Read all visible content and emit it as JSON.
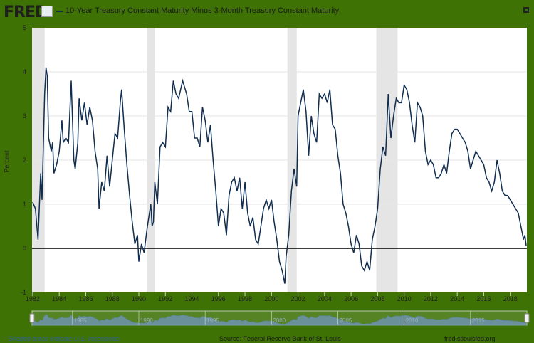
{
  "header": {
    "logo": "FRED",
    "title": "10-Year Treasury Constant Maturity Minus 3-Month Treasury Constant Maturity"
  },
  "footer": {
    "recession_note": "Shaded areas indicate U.S. recessions",
    "source": "Source: Federal Reserve Bank of St. Louis",
    "url": "fred.stlouisfed.org"
  },
  "colors": {
    "background": "#3f7205",
    "series": "#112e51",
    "recession": "#e5e5e5",
    "navigator": "#6f95b8"
  },
  "chart_data": {
    "type": "line",
    "ylabel": "Percent",
    "ylim": [
      -1,
      5
    ],
    "xlim": [
      1981.95,
      2019.25
    ],
    "yticks": [
      "5",
      "4",
      "3",
      "2",
      "1",
      "0",
      "-1"
    ],
    "xticks": [
      "1982",
      "1984",
      "1986",
      "1988",
      "1990",
      "1992",
      "1994",
      "1996",
      "1998",
      "2000",
      "2002",
      "2004",
      "2006",
      "2008",
      "2010",
      "2012",
      "2014",
      "2016",
      "2018"
    ],
    "navigator_ticks": [
      "1985",
      "1990",
      "1995",
      "2000",
      "2005",
      "2010",
      "2015"
    ],
    "grid": true,
    "recessions": [
      [
        1981.5,
        1982.9
      ],
      [
        1990.6,
        1991.2
      ],
      [
        2001.2,
        2001.9
      ],
      [
        2007.9,
        2009.5
      ]
    ],
    "series": [
      {
        "points": [
          [
            1982.0,
            1.05
          ],
          [
            1982.2,
            0.9
          ],
          [
            1982.4,
            0.2
          ],
          [
            1982.6,
            1.7
          ],
          [
            1982.7,
            1.1
          ],
          [
            1982.9,
            3.5
          ],
          [
            1983.0,
            4.1
          ],
          [
            1983.1,
            3.9
          ],
          [
            1983.2,
            2.5
          ],
          [
            1983.4,
            2.2
          ],
          [
            1983.5,
            2.4
          ],
          [
            1983.6,
            1.7
          ],
          [
            1983.8,
            1.9
          ],
          [
            1984.0,
            2.2
          ],
          [
            1984.2,
            2.9
          ],
          [
            1984.3,
            2.4
          ],
          [
            1984.5,
            2.5
          ],
          [
            1984.7,
            2.4
          ],
          [
            1984.9,
            3.8
          ],
          [
            1985.1,
            2.0
          ],
          [
            1985.2,
            1.8
          ],
          [
            1985.4,
            2.4
          ],
          [
            1985.5,
            3.4
          ],
          [
            1985.7,
            2.9
          ],
          [
            1985.9,
            3.3
          ],
          [
            1986.1,
            2.8
          ],
          [
            1986.3,
            3.2
          ],
          [
            1986.5,
            2.9
          ],
          [
            1986.7,
            2.2
          ],
          [
            1986.9,
            1.8
          ],
          [
            1987.0,
            0.9
          ],
          [
            1987.2,
            1.5
          ],
          [
            1987.4,
            1.3
          ],
          [
            1987.6,
            2.1
          ],
          [
            1987.8,
            1.4
          ],
          [
            1988.0,
            2.0
          ],
          [
            1988.2,
            2.6
          ],
          [
            1988.4,
            2.5
          ],
          [
            1988.6,
            3.3
          ],
          [
            1988.7,
            3.6
          ],
          [
            1988.9,
            2.7
          ],
          [
            1989.1,
            1.9
          ],
          [
            1989.3,
            1.2
          ],
          [
            1989.5,
            0.6
          ],
          [
            1989.7,
            0.1
          ],
          [
            1989.9,
            0.3
          ],
          [
            1990.0,
            -0.3
          ],
          [
            1990.2,
            0.1
          ],
          [
            1990.4,
            -0.1
          ],
          [
            1990.6,
            0.4
          ],
          [
            1990.7,
            0.6
          ],
          [
            1990.9,
            1.0
          ],
          [
            1991.0,
            0.5
          ],
          [
            1991.1,
            0.6
          ],
          [
            1991.2,
            1.5
          ],
          [
            1991.4,
            1.0
          ],
          [
            1991.6,
            2.3
          ],
          [
            1991.8,
            2.4
          ],
          [
            1992.0,
            2.3
          ],
          [
            1992.2,
            3.2
          ],
          [
            1992.4,
            3.1
          ],
          [
            1992.6,
            3.8
          ],
          [
            1992.8,
            3.5
          ],
          [
            1993.0,
            3.4
          ],
          [
            1993.3,
            3.8
          ],
          [
            1993.6,
            3.5
          ],
          [
            1993.8,
            3.1
          ],
          [
            1994.0,
            3.1
          ],
          [
            1994.2,
            2.5
          ],
          [
            1994.4,
            2.5
          ],
          [
            1994.6,
            2.3
          ],
          [
            1994.8,
            3.2
          ],
          [
            1995.0,
            2.9
          ],
          [
            1995.2,
            2.4
          ],
          [
            1995.4,
            2.8
          ],
          [
            1995.6,
            2.0
          ],
          [
            1995.8,
            1.3
          ],
          [
            1996.0,
            0.5
          ],
          [
            1996.2,
            0.9
          ],
          [
            1996.4,
            0.8
          ],
          [
            1996.6,
            0.3
          ],
          [
            1996.8,
            1.2
          ],
          [
            1997.0,
            1.5
          ],
          [
            1997.2,
            1.6
          ],
          [
            1997.4,
            1.3
          ],
          [
            1997.6,
            1.6
          ],
          [
            1997.8,
            0.9
          ],
          [
            1998.0,
            1.5
          ],
          [
            1998.2,
            0.8
          ],
          [
            1998.4,
            0.5
          ],
          [
            1998.6,
            0.7
          ],
          [
            1998.8,
            0.2
          ],
          [
            1999.0,
            0.1
          ],
          [
            1999.2,
            0.5
          ],
          [
            1999.4,
            0.9
          ],
          [
            1999.6,
            1.1
          ],
          [
            1999.8,
            0.9
          ],
          [
            2000.0,
            1.1
          ],
          [
            2000.2,
            0.6
          ],
          [
            2000.4,
            0.2
          ],
          [
            2000.6,
            -0.3
          ],
          [
            2000.8,
            -0.5
          ],
          [
            2001.0,
            -0.8
          ],
          [
            2001.1,
            -0.2
          ],
          [
            2001.3,
            0.3
          ],
          [
            2001.5,
            1.3
          ],
          [
            2001.7,
            1.8
          ],
          [
            2001.9,
            1.4
          ],
          [
            2002.0,
            3.0
          ],
          [
            2002.2,
            3.3
          ],
          [
            2002.4,
            3.6
          ],
          [
            2002.6,
            3.1
          ],
          [
            2002.8,
            2.1
          ],
          [
            2003.0,
            3.0
          ],
          [
            2003.2,
            2.6
          ],
          [
            2003.4,
            2.4
          ],
          [
            2003.6,
            3.5
          ],
          [
            2003.8,
            3.4
          ],
          [
            2004.0,
            3.5
          ],
          [
            2004.2,
            3.3
          ],
          [
            2004.4,
            3.6
          ],
          [
            2004.6,
            2.8
          ],
          [
            2004.8,
            2.7
          ],
          [
            2005.0,
            2.1
          ],
          [
            2005.2,
            1.7
          ],
          [
            2005.4,
            1.0
          ],
          [
            2005.6,
            0.8
          ],
          [
            2005.8,
            0.5
          ],
          [
            2006.0,
            0.1
          ],
          [
            2006.2,
            -0.1
          ],
          [
            2006.4,
            0.3
          ],
          [
            2006.6,
            0.1
          ],
          [
            2006.8,
            -0.4
          ],
          [
            2007.0,
            -0.5
          ],
          [
            2007.2,
            -0.3
          ],
          [
            2007.4,
            -0.5
          ],
          [
            2007.6,
            0.2
          ],
          [
            2007.8,
            0.5
          ],
          [
            2008.0,
            0.9
          ],
          [
            2008.2,
            1.8
          ],
          [
            2008.4,
            2.3
          ],
          [
            2008.6,
            2.1
          ],
          [
            2008.8,
            3.5
          ],
          [
            2009.0,
            2.5
          ],
          [
            2009.2,
            3.0
          ],
          [
            2009.4,
            3.4
          ],
          [
            2009.6,
            3.3
          ],
          [
            2009.8,
            3.3
          ],
          [
            2010.0,
            3.7
          ],
          [
            2010.2,
            3.6
          ],
          [
            2010.4,
            3.3
          ],
          [
            2010.6,
            2.8
          ],
          [
            2010.8,
            2.4
          ],
          [
            2011.0,
            3.3
          ],
          [
            2011.2,
            3.2
          ],
          [
            2011.4,
            3.0
          ],
          [
            2011.6,
            2.2
          ],
          [
            2011.8,
            1.9
          ],
          [
            2012.0,
            2.0
          ],
          [
            2012.2,
            1.9
          ],
          [
            2012.4,
            1.6
          ],
          [
            2012.6,
            1.6
          ],
          [
            2012.8,
            1.7
          ],
          [
            2013.0,
            1.9
          ],
          [
            2013.2,
            1.7
          ],
          [
            2013.4,
            2.2
          ],
          [
            2013.6,
            2.6
          ],
          [
            2013.8,
            2.7
          ],
          [
            2014.0,
            2.7
          ],
          [
            2014.2,
            2.6
          ],
          [
            2014.4,
            2.5
          ],
          [
            2014.6,
            2.4
          ],
          [
            2014.8,
            2.2
          ],
          [
            2015.0,
            1.8
          ],
          [
            2015.2,
            2.0
          ],
          [
            2015.4,
            2.2
          ],
          [
            2015.6,
            2.1
          ],
          [
            2015.8,
            2.0
          ],
          [
            2016.0,
            1.9
          ],
          [
            2016.2,
            1.6
          ],
          [
            2016.4,
            1.5
          ],
          [
            2016.6,
            1.3
          ],
          [
            2016.8,
            1.5
          ],
          [
            2017.0,
            2.0
          ],
          [
            2017.2,
            1.7
          ],
          [
            2017.4,
            1.3
          ],
          [
            2017.6,
            1.2
          ],
          [
            2017.8,
            1.2
          ],
          [
            2018.0,
            1.1
          ],
          [
            2018.2,
            1.0
          ],
          [
            2018.4,
            0.9
          ],
          [
            2018.6,
            0.8
          ],
          [
            2018.8,
            0.5
          ],
          [
            2019.0,
            0.2
          ],
          [
            2019.1,
            0.3
          ],
          [
            2019.2,
            0.05
          ]
        ]
      }
    ]
  }
}
